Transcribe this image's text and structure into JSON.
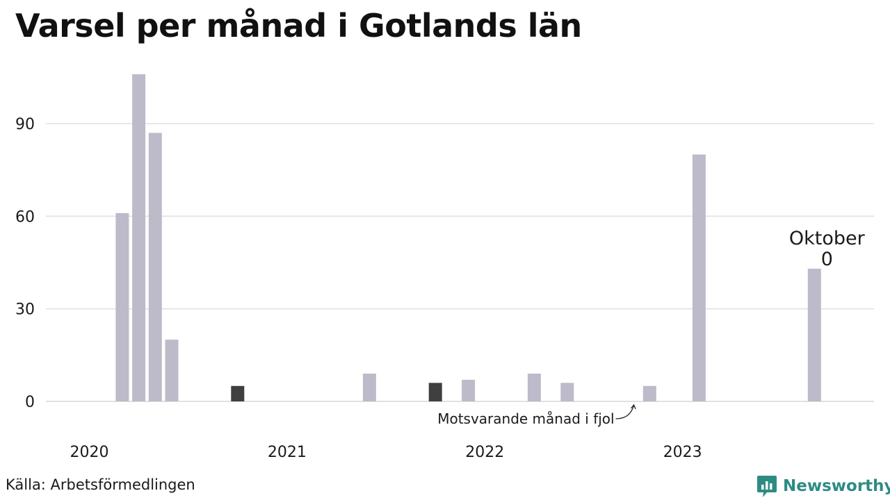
{
  "title": "Varsel per månad i Gotlands län",
  "source": "Källa: Arbetsförmedlingen",
  "brand": {
    "name": "Newsworthy",
    "logo_icon": "newsworthy-logo-icon"
  },
  "colors": {
    "bar": "#bdbbc9",
    "highlight": "#3f3f3f",
    "grid": "#e0e0e0",
    "text": "#1a1a1a",
    "brand": "#2e8b84"
  },
  "chart_data": {
    "type": "bar",
    "title": "Varsel per månad i Gotlands län",
    "xlabel": "",
    "ylabel": "",
    "ylim": [
      0,
      110
    ],
    "yticks": [
      0,
      30,
      60,
      90
    ],
    "year_labels": [
      {
        "label": "2020",
        "month_index": 0
      },
      {
        "label": "2021",
        "month_index": 12
      },
      {
        "label": "2022",
        "month_index": 24
      },
      {
        "label": "2023",
        "month_index": 36
      }
    ],
    "grid": true,
    "values": [
      {
        "month_index": 2,
        "value": 61,
        "highlight": false
      },
      {
        "month_index": 3,
        "value": 106,
        "highlight": false
      },
      {
        "month_index": 4,
        "value": 87,
        "highlight": false
      },
      {
        "month_index": 5,
        "value": 20,
        "highlight": false
      },
      {
        "month_index": 9,
        "value": 5,
        "highlight": true
      },
      {
        "month_index": 17,
        "value": 9,
        "highlight": false
      },
      {
        "month_index": 21,
        "value": 6,
        "highlight": true
      },
      {
        "month_index": 23,
        "value": 7,
        "highlight": false
      },
      {
        "month_index": 27,
        "value": 9,
        "highlight": false
      },
      {
        "month_index": 29,
        "value": 6,
        "highlight": false
      },
      {
        "month_index": 34,
        "value": 5,
        "highlight": false
      },
      {
        "month_index": 37,
        "value": 80,
        "highlight": false
      },
      {
        "month_index": 44,
        "value": 43,
        "highlight": false
      }
    ],
    "last_month_label": {
      "line1": "Oktober",
      "line2": "0",
      "month_index": 44
    },
    "annotation": {
      "text": "Motsvarande månad i fjol",
      "month_index": 33
    }
  }
}
